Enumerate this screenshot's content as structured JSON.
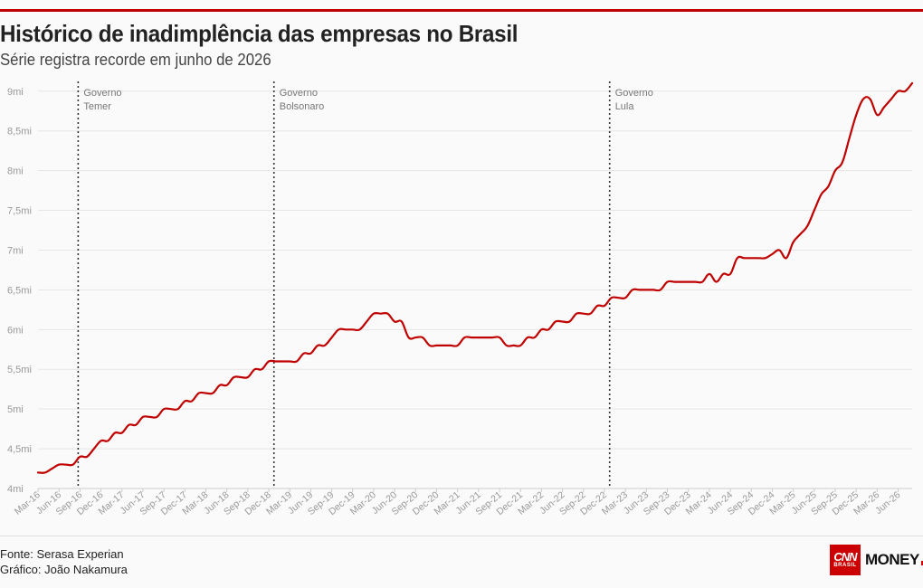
{
  "header": {
    "title": "Histórico de inadimplência das empresas no Brasil",
    "subtitle": "Série registra recorde em junho de 2026"
  },
  "footer": {
    "source": "Fonte: Serasa Experian",
    "credit": "Gráfico: João Nakamura"
  },
  "logo": {
    "cnn": "CNN",
    "brasil": "BRASIL",
    "money": "MONEY"
  },
  "colors": {
    "line": "#c00000",
    "accent": "#c00000",
    "grid": "#e6e6e6",
    "tick_text": "#999999"
  },
  "chart_data": {
    "type": "line",
    "title": "Histórico de inadimplência das empresas no Brasil",
    "subtitle": "Série registra recorde em junho de 2026",
    "ylim": [
      4,
      9.1
    ],
    "y_ticks": [
      4,
      4.5,
      5,
      5.5,
      6,
      6.5,
      7,
      7.5,
      8,
      8.5,
      9
    ],
    "y_tick_labels": [
      "4mi",
      "4,5mi",
      "5mi",
      "5,5mi",
      "6mi",
      "6,5mi",
      "7mi",
      "7,5mi",
      "8mi",
      "8,5mi",
      "9mi"
    ],
    "x_tick_labels": [
      "Mar-16",
      "Jun-16",
      "Sep-16",
      "Dec-16",
      "Mar-17",
      "Jun-17",
      "Sep-17",
      "Dec-17",
      "Mar-18",
      "Jun-18",
      "Sep-18",
      "Dec-18",
      "Mar-19",
      "Jun-19",
      "Sep-19",
      "Dec-19",
      "Mar-20",
      "Jun-20",
      "Sep-20",
      "Dec-20",
      "Mar-21",
      "Jun-21",
      "Sep-21",
      "Dec-21",
      "Mar-22",
      "Jun-22",
      "Sep-22",
      "Dec-22",
      "Mar-23",
      "Jun-23",
      "Sep-23",
      "Dec-23",
      "Mar-24",
      "Jun-24",
      "Sep-24",
      "Dec-24",
      "Mar-25",
      "Jun-25",
      "Sep-25",
      "Dec-25",
      "Mar-26",
      "Jun-26"
    ],
    "grid": true,
    "annotations": [
      {
        "label_line1": "Governo",
        "label_line2": "Temer",
        "date": "2016-09"
      },
      {
        "label_line1": "Governo",
        "label_line2": "Bolsonaro",
        "date": "2019-01"
      },
      {
        "label_line1": "Governo",
        "label_line2": "Lula",
        "date": "2023-01"
      }
    ],
    "series": [
      {
        "start": "2016-03",
        "values": [
          4.2,
          4.2,
          4.25,
          4.3,
          4.3,
          4.3,
          4.4,
          4.4,
          4.5,
          4.6,
          4.6,
          4.7,
          4.7,
          4.8,
          4.8,
          4.9,
          4.9,
          4.9,
          5.0,
          5.0,
          5.0,
          5.1,
          5.1,
          5.2,
          5.2,
          5.2,
          5.3,
          5.3,
          5.4,
          5.4,
          5.4,
          5.5,
          5.5,
          5.6,
          5.6,
          5.6,
          5.6,
          5.6,
          5.7,
          5.7,
          5.8,
          5.8,
          5.9,
          6.0,
          6.0,
          6.0,
          6.0,
          6.1,
          6.2,
          6.2,
          6.2,
          6.1,
          6.1,
          5.9,
          5.9,
          5.9,
          5.8,
          5.8,
          5.8,
          5.8,
          5.8,
          5.9,
          5.9,
          5.9,
          5.9,
          5.9,
          5.9,
          5.8,
          5.8,
          5.8,
          5.9,
          5.9,
          6.0,
          6.0,
          6.1,
          6.1,
          6.1,
          6.2,
          6.2,
          6.2,
          6.3,
          6.3,
          6.4,
          6.4,
          6.4,
          6.5,
          6.5,
          6.5,
          6.5,
          6.5,
          6.6,
          6.6,
          6.6,
          6.6,
          6.6,
          6.6,
          6.7,
          6.6,
          6.7,
          6.7,
          6.9,
          6.9,
          6.9,
          6.9,
          6.9,
          6.95,
          7.0,
          6.9,
          7.1,
          7.2,
          7.3,
          7.5,
          7.7,
          7.8,
          8.0,
          8.1,
          8.4,
          8.7,
          8.9,
          8.9,
          8.7,
          8.8,
          8.9,
          9.0,
          9.0,
          9.1
        ]
      }
    ]
  }
}
